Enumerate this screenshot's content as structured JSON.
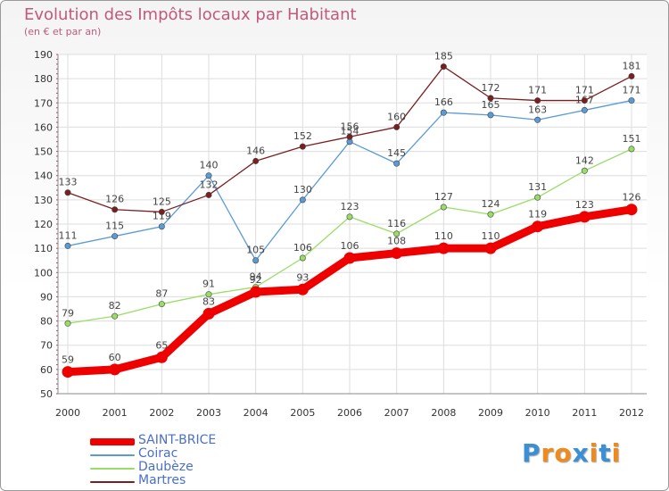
{
  "header": {
    "title": "Evolution des Impôts locaux par Habitant",
    "subtitle": "(en € et par an)"
  },
  "logo": {
    "text": "Proxiti",
    "letter_colors": [
      "#3a8fd6",
      "#f08a1c",
      "#f08a1c",
      "#3a8fd6",
      "#f08a1c",
      "#3a8fd6",
      "#f08a1c"
    ]
  },
  "chart_data": {
    "type": "line",
    "title": "Evolution des Impôts locaux par Habitant",
    "subtitle": "(en € et par an)",
    "xlabel": "",
    "ylabel": "",
    "x": [
      "2000",
      "2001",
      "2002",
      "2003",
      "2004",
      "2005",
      "2006",
      "2007",
      "2008",
      "2009",
      "2010",
      "2011",
      "2012"
    ],
    "ylim": [
      50,
      190
    ],
    "yticks": [
      50,
      60,
      70,
      80,
      90,
      100,
      110,
      120,
      130,
      140,
      150,
      160,
      170,
      180,
      190
    ],
    "grid": true,
    "legend_position": "bottom-left",
    "series": [
      {
        "name": "SAINT-BRICE",
        "color": "#ee0000",
        "emphasis": true,
        "values": [
          59,
          60,
          65,
          83,
          92,
          93,
          106,
          108,
          110,
          110,
          119,
          123,
          126
        ]
      },
      {
        "name": "Coirac",
        "color": "#5b9bd5",
        "emphasis": false,
        "values": [
          111,
          115,
          119,
          140,
          105,
          130,
          154,
          145,
          166,
          165,
          163,
          167,
          171
        ]
      },
      {
        "name": "Daubèze",
        "color": "#99dd66",
        "emphasis": false,
        "values": [
          79,
          82,
          87,
          91,
          94,
          106,
          123,
          116,
          127,
          124,
          131,
          142,
          151
        ]
      },
      {
        "name": "Martres",
        "color": "#7a1f1f",
        "emphasis": false,
        "values": [
          133,
          126,
          125,
          132,
          146,
          152,
          156,
          160,
          185,
          172,
          171,
          171,
          181
        ]
      }
    ]
  }
}
